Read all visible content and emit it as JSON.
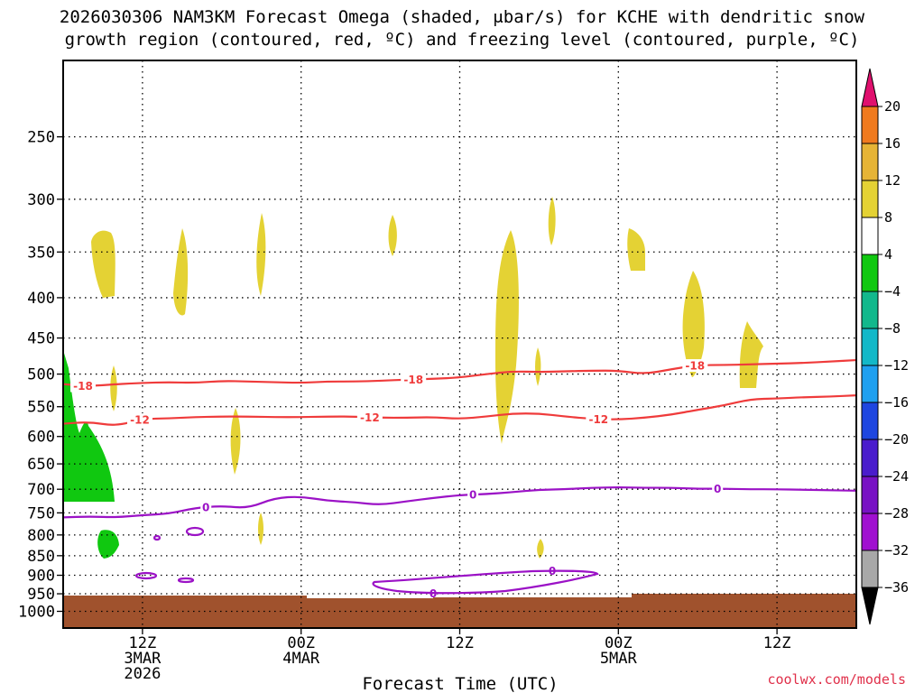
{
  "title_line1": "2026030306 NAM3KM Forecast Omega (shaded, μbar/s) for KCHE with dendritic snow",
  "title_line2": "growth region (contoured, red, ºC) and freezing level (contoured, purple, ºC)",
  "credit": "coolwx.com/models",
  "chart_data": {
    "type": "heatmap",
    "xlabel": "Forecast Time (UTC)",
    "ylabel": "",
    "yaxis": "pressure (hPa)",
    "ylim": [
      1050,
      200
    ],
    "xlim_hours": [
      0,
      60
    ],
    "y_ticks": [
      250,
      300,
      350,
      400,
      450,
      500,
      550,
      600,
      650,
      700,
      750,
      800,
      850,
      900,
      950,
      1000
    ],
    "x_ticks": [
      {
        "hour": 6,
        "line1": "12Z",
        "line2": "3MAR",
        "line3": "2026"
      },
      {
        "hour": 18,
        "line1": "00Z",
        "line2": "4MAR",
        "line3": ""
      },
      {
        "hour": 30,
        "line1": "12Z",
        "line2": "",
        "line3": ""
      },
      {
        "hour": 42,
        "line1": "00Z",
        "line2": "5MAR",
        "line3": ""
      },
      {
        "hour": 54,
        "line1": "12Z",
        "line2": "",
        "line3": ""
      }
    ],
    "grid": true,
    "colorbar": {
      "labels": [
        "20",
        "16",
        "12",
        "8",
        "4",
        "−4",
        "−8",
        "−12",
        "−16",
        "−20",
        "−24",
        "−28",
        "−32",
        "−36"
      ],
      "colors": [
        "#ff3050",
        "#f07a1e",
        "#e6b436",
        "#e4d234",
        "#ffffff",
        "#10c810",
        "#12b88c",
        "#13b8c8",
        "#1fa0f0",
        "#1e46e0",
        "#4a1ccc",
        "#7812c4",
        "#a010d0",
        "#a8a8a8"
      ],
      "top_arrow": "#e0106e",
      "bottom_arrow": "#000000"
    },
    "contours": {
      "dendritic_minus18": {
        "color": "#ef3b3b",
        "label": "-18",
        "p": [
          [
            0,
            515
          ],
          [
            2,
            518
          ],
          [
            4,
            515
          ],
          [
            6,
            513
          ],
          [
            8,
            512
          ],
          [
            10,
            513
          ],
          [
            12,
            510
          ],
          [
            14,
            511
          ],
          [
            16,
            512
          ],
          [
            18,
            513
          ],
          [
            20,
            511
          ],
          [
            22,
            511
          ],
          [
            24,
            510
          ],
          [
            26,
            508
          ],
          [
            28,
            507
          ],
          [
            30,
            505
          ],
          [
            32,
            500
          ],
          [
            34,
            496
          ],
          [
            36,
            497
          ],
          [
            38,
            496
          ],
          [
            40,
            495
          ],
          [
            42,
            495
          ],
          [
            44,
            500
          ],
          [
            46,
            493
          ],
          [
            48,
            487
          ],
          [
            50,
            487
          ],
          [
            52,
            486
          ],
          [
            54,
            485
          ],
          [
            56,
            484
          ],
          [
            58,
            482
          ],
          [
            60,
            480
          ]
        ]
      },
      "dendritic_minus12": {
        "color": "#ef3b3b",
        "label": "-12",
        "p": [
          [
            0,
            578
          ],
          [
            2,
            575
          ],
          [
            4,
            582
          ],
          [
            6,
            570
          ],
          [
            8,
            569
          ],
          [
            10,
            567
          ],
          [
            12,
            566
          ],
          [
            14,
            566
          ],
          [
            16,
            567
          ],
          [
            18,
            567
          ],
          [
            20,
            566
          ],
          [
            22,
            566
          ],
          [
            24,
            568
          ],
          [
            26,
            568
          ],
          [
            28,
            567
          ],
          [
            30,
            570
          ],
          [
            32,
            566
          ],
          [
            34,
            561
          ],
          [
            36,
            561
          ],
          [
            38,
            566
          ],
          [
            40,
            570
          ],
          [
            42,
            571
          ],
          [
            44,
            568
          ],
          [
            46,
            563
          ],
          [
            48,
            555
          ],
          [
            50,
            548
          ],
          [
            52,
            538
          ],
          [
            54,
            537
          ],
          [
            56,
            535
          ],
          [
            58,
            534
          ],
          [
            60,
            532
          ]
        ]
      },
      "freezing_0": {
        "color": "#9b12c6",
        "label": "0",
        "p": [
          [
            0,
            760
          ],
          [
            2,
            758
          ],
          [
            4,
            760
          ],
          [
            6,
            755
          ],
          [
            8,
            752
          ],
          [
            10,
            739
          ],
          [
            12,
            735
          ],
          [
            14,
            740
          ],
          [
            16,
            718
          ],
          [
            18,
            715
          ],
          [
            20,
            724
          ],
          [
            22,
            727
          ],
          [
            24,
            733
          ],
          [
            26,
            725
          ],
          [
            28,
            718
          ],
          [
            30,
            712
          ],
          [
            32,
            710
          ],
          [
            34,
            706
          ],
          [
            36,
            701
          ],
          [
            38,
            700
          ],
          [
            40,
            697
          ],
          [
            42,
            696
          ],
          [
            44,
            697
          ],
          [
            46,
            697
          ],
          [
            48,
            699
          ],
          [
            50,
            699
          ],
          [
            52,
            700
          ],
          [
            54,
            700
          ],
          [
            56,
            701
          ],
          [
            58,
            702
          ],
          [
            60,
            703
          ]
        ]
      }
    },
    "legend": "none"
  }
}
